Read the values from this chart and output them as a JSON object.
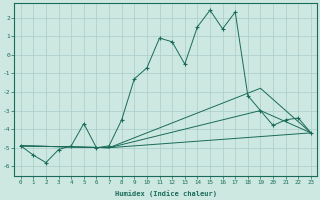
{
  "background_color": "#cce8e0",
  "grid_color": "#aacccc",
  "line_color": "#1a6b5a",
  "xlabel": "Humidex (Indice chaleur)",
  "ylim": [
    -6.5,
    2.8
  ],
  "xlim": [
    -0.5,
    23.5
  ],
  "series0_x": [
    0,
    1,
    2,
    3,
    4,
    5,
    6,
    7,
    8,
    9,
    10,
    11,
    12,
    13,
    14,
    15,
    16,
    17,
    18,
    19,
    20,
    21,
    22,
    23
  ],
  "series0_y": [
    -4.9,
    -5.4,
    -5.8,
    -5.1,
    -4.9,
    -3.7,
    -5.0,
    -4.9,
    -3.5,
    -1.3,
    -0.7,
    0.9,
    0.7,
    -0.5,
    1.5,
    2.4,
    1.4,
    2.3,
    -2.2,
    -3.0,
    -3.8,
    -3.5,
    -3.4,
    -4.2
  ],
  "series1_x": [
    0,
    7,
    23
  ],
  "series1_y": [
    -4.9,
    -5.0,
    -4.2
  ],
  "series2_x": [
    0,
    7,
    19,
    23
  ],
  "series2_y": [
    -4.9,
    -5.0,
    -3.0,
    -4.2
  ],
  "series3_x": [
    0,
    7,
    19,
    23
  ],
  "series3_y": [
    -4.9,
    -5.0,
    -1.8,
    -4.2
  ],
  "yticks": [
    -6,
    -5,
    -4,
    -3,
    -2,
    -1,
    0,
    1,
    2
  ],
  "xticks": [
    0,
    1,
    2,
    3,
    4,
    5,
    6,
    7,
    8,
    9,
    10,
    11,
    12,
    13,
    14,
    15,
    16,
    17,
    18,
    19,
    20,
    21,
    22,
    23
  ]
}
